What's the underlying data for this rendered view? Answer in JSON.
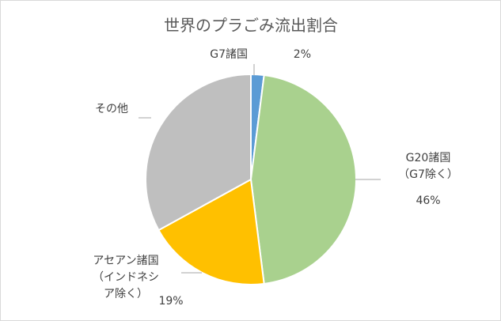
{
  "chart_data": {
    "type": "pie",
    "title": "世界のプラごみ流出割合",
    "slices": [
      {
        "label_lines": [
          "G7諸国"
        ],
        "value": 2,
        "value_label": "2%",
        "color": "#5b9bd5"
      },
      {
        "label_lines": [
          "G20諸国",
          "（G7除く）"
        ],
        "value": 46,
        "value_label": "46%",
        "color": "#a9d18e"
      },
      {
        "label_lines": [
          "アセアン諸国",
          "（インドネシ",
          "ア除く）"
        ],
        "value": 19,
        "value_label": "19%",
        "color": "#ffc000"
      },
      {
        "label_lines": [
          "その他"
        ],
        "value": 33,
        "value_label": "",
        "color": "#bfbfbf"
      }
    ],
    "legend": "none",
    "start_angle": "12 o'clock",
    "direction": "clockwise"
  }
}
